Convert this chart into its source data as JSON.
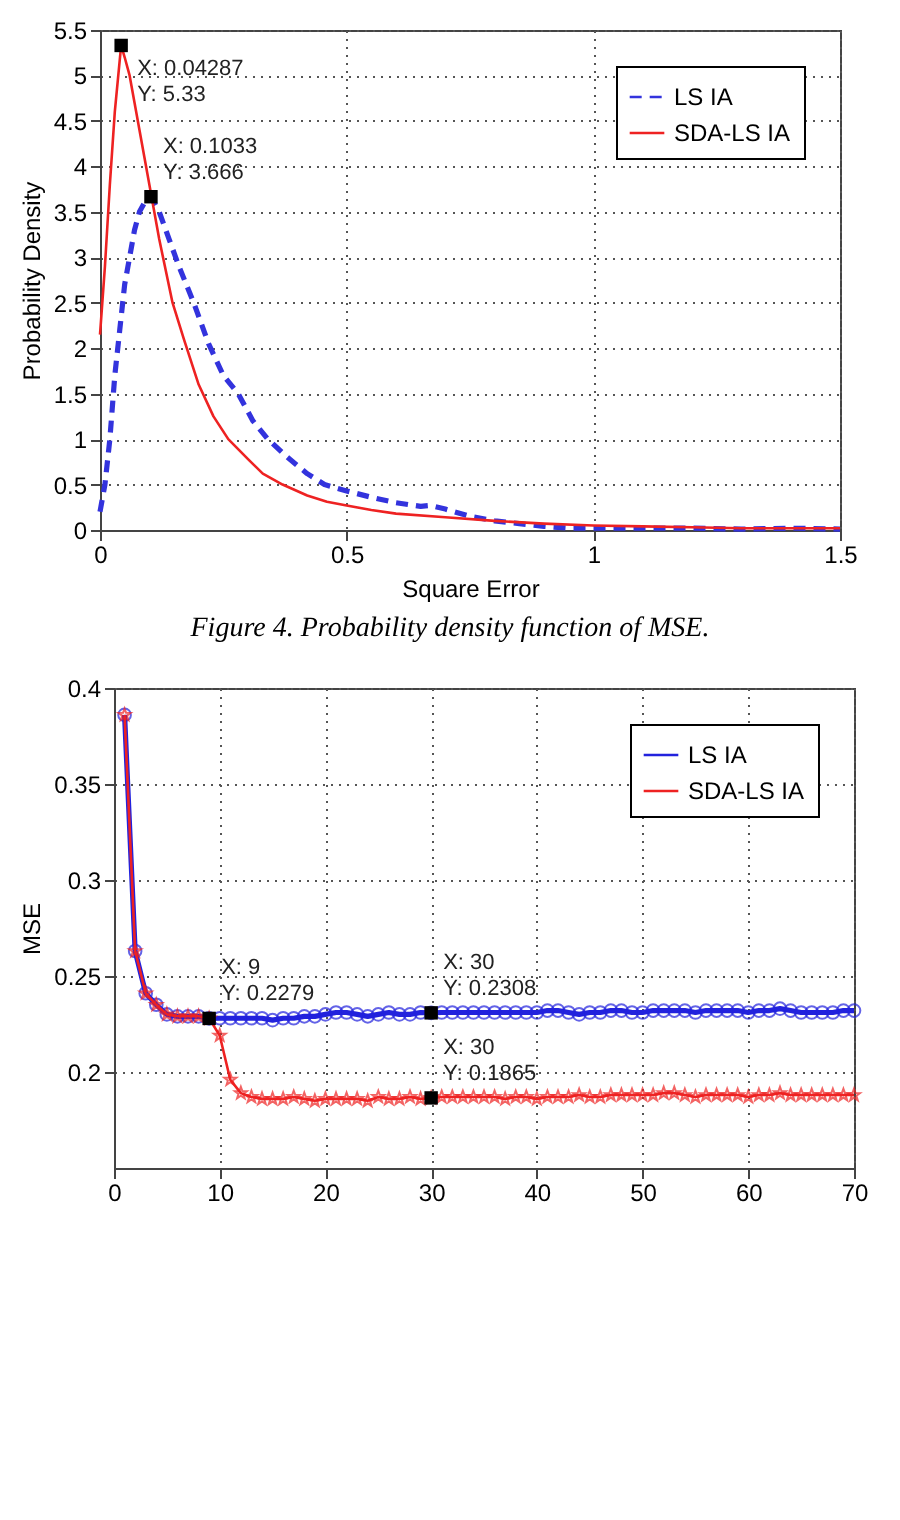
{
  "chart_data": [
    {
      "type": "line",
      "xlabel": "Square Error",
      "ylabel": "Probability Density",
      "xlim": [
        0,
        1.5
      ],
      "xticks": [
        0,
        0.5,
        1,
        1.5
      ],
      "ylim": [
        0,
        5.5
      ],
      "yticks": [
        0,
        0.5,
        1,
        1.5,
        2,
        2.5,
        3,
        3.5,
        4,
        4.5,
        5,
        5.5
      ],
      "grid": true,
      "legend": "top right",
      "series": [
        {
          "name": "LS IA",
          "color": "#3333dd",
          "line_style": "dashed",
          "x": [
            0,
            0.01,
            0.02,
            0.03,
            0.04,
            0.05,
            0.06,
            0.07,
            0.08,
            0.09,
            0.1033,
            0.12,
            0.14,
            0.16,
            0.19,
            0.22,
            0.25,
            0.28,
            0.31,
            0.34,
            0.38,
            0.42,
            0.455,
            0.5,
            0.55,
            0.6,
            0.65,
            0.67,
            0.7,
            0.75,
            0.8,
            0.85,
            0.9,
            0.95,
            1.0,
            1.1,
            1.2,
            1.3,
            1.4,
            1.5
          ],
          "values": [
            0.2,
            0.5,
            1.0,
            1.7,
            2.2,
            2.7,
            3.0,
            3.3,
            3.5,
            3.6,
            3.666,
            3.5,
            3.2,
            2.9,
            2.5,
            2.05,
            1.7,
            1.5,
            1.2,
            1.0,
            0.8,
            0.62,
            0.5,
            0.43,
            0.36,
            0.3,
            0.26,
            0.27,
            0.23,
            0.15,
            0.1,
            0.07,
            0.04,
            0.02,
            0.02,
            0.02,
            0.02,
            0.01,
            0.02,
            0.01
          ]
        },
        {
          "name": "SDA-LS IA",
          "color": "#ee2222",
          "line_style": "solid",
          "x": [
            0,
            0.01,
            0.02,
            0.03,
            0.04287,
            0.05,
            0.06,
            0.07,
            0.08,
            0.09,
            0.1,
            0.12,
            0.147,
            0.17,
            0.2,
            0.23,
            0.26,
            0.3,
            0.33,
            0.37,
            0.42,
            0.46,
            0.5,
            0.55,
            0.6,
            0.7,
            0.8,
            0.9,
            1.0,
            1.1,
            1.2,
            1.3,
            1.4,
            1.5
          ],
          "values": [
            2.15,
            2.9,
            3.8,
            4.6,
            5.33,
            5.2,
            5.0,
            4.7,
            4.4,
            4.1,
            3.8,
            3.2,
            2.5,
            2.1,
            1.6,
            1.25,
            1.0,
            0.78,
            0.62,
            0.5,
            0.38,
            0.31,
            0.27,
            0.22,
            0.18,
            0.14,
            0.1,
            0.07,
            0.05,
            0.04,
            0.03,
            0.02,
            0.02,
            0.02
          ]
        }
      ],
      "annotations": [
        {
          "text": "X: 0.04287\nY: 5.33",
          "x": 0.04287,
          "y": 5.33
        },
        {
          "text": "X: 0.1033\nY: 3.666",
          "x": 0.1033,
          "y": 3.666
        },
        "Figure 4. Probability density function of MSE."
      ]
    },
    {
      "type": "line",
      "ylabel": "MSE",
      "xlim": [
        0,
        70
      ],
      "xticks": [
        0,
        10,
        20,
        30,
        40,
        50,
        60,
        70
      ],
      "ylim": [
        0.15,
        0.4
      ],
      "yticks": [
        0.2,
        0.25,
        0.3,
        0.35,
        0.4
      ],
      "grid": true,
      "legend": "top right",
      "x": [
        1,
        2,
        3,
        4,
        5,
        6,
        7,
        8,
        9,
        10,
        11,
        12,
        13,
        14,
        15,
        16,
        17,
        18,
        19,
        20,
        21,
        22,
        23,
        24,
        25,
        26,
        27,
        28,
        29,
        30,
        31,
        32,
        33,
        34,
        35,
        36,
        37,
        38,
        39,
        40,
        41,
        42,
        43,
        44,
        45,
        46,
        47,
        48,
        49,
        50,
        51,
        52,
        53,
        54,
        55,
        56,
        57,
        58,
        59,
        60,
        61,
        62,
        63,
        64,
        65,
        66,
        67,
        68,
        69,
        70
      ],
      "series": [
        {
          "name": "LS IA",
          "color": "#2222dd",
          "marker": "circle",
          "line_style": "solid",
          "values": [
            0.386,
            0.263,
            0.241,
            0.235,
            0.23,
            0.229,
            0.229,
            0.229,
            0.2279,
            0.228,
            0.228,
            0.228,
            0.228,
            0.228,
            0.227,
            0.228,
            0.228,
            0.229,
            0.229,
            0.23,
            0.231,
            0.231,
            0.23,
            0.229,
            0.23,
            0.231,
            0.23,
            0.23,
            0.231,
            0.2308,
            0.231,
            0.231,
            0.231,
            0.231,
            0.231,
            0.231,
            0.231,
            0.231,
            0.231,
            0.231,
            0.232,
            0.232,
            0.231,
            0.23,
            0.231,
            0.231,
            0.232,
            0.232,
            0.231,
            0.231,
            0.232,
            0.232,
            0.232,
            0.232,
            0.231,
            0.232,
            0.232,
            0.232,
            0.232,
            0.231,
            0.232,
            0.232,
            0.233,
            0.232,
            0.231,
            0.231,
            0.231,
            0.231,
            0.232,
            0.232
          ]
        },
        {
          "name": "SDA-LS IA",
          "color": "#ee2222",
          "marker": "star",
          "line_style": "solid",
          "values": [
            0.386,
            0.263,
            0.241,
            0.235,
            0.23,
            0.229,
            0.229,
            0.229,
            0.2279,
            0.219,
            0.196,
            0.189,
            0.187,
            0.186,
            0.186,
            0.186,
            0.187,
            0.186,
            0.185,
            0.186,
            0.186,
            0.186,
            0.186,
            0.185,
            0.187,
            0.186,
            0.186,
            0.187,
            0.186,
            0.1865,
            0.187,
            0.187,
            0.187,
            0.187,
            0.187,
            0.187,
            0.186,
            0.187,
            0.187,
            0.186,
            0.187,
            0.187,
            0.187,
            0.188,
            0.187,
            0.187,
            0.188,
            0.188,
            0.188,
            0.188,
            0.188,
            0.189,
            0.189,
            0.188,
            0.187,
            0.188,
            0.188,
            0.188,
            0.188,
            0.187,
            0.188,
            0.188,
            0.189,
            0.188,
            0.188,
            0.188,
            0.188,
            0.188,
            0.188,
            0.188
          ]
        }
      ],
      "annotations": [
        {
          "text": "X: 9\nY: 0.2279",
          "x": 9,
          "y": 0.2279
        },
        {
          "text": "X: 30\nY: 0.2308",
          "x": 30,
          "y": 0.2308
        },
        {
          "text": "X: 30\nY: 0.1865",
          "x": 30,
          "y": 0.1865
        }
      ]
    }
  ]
}
